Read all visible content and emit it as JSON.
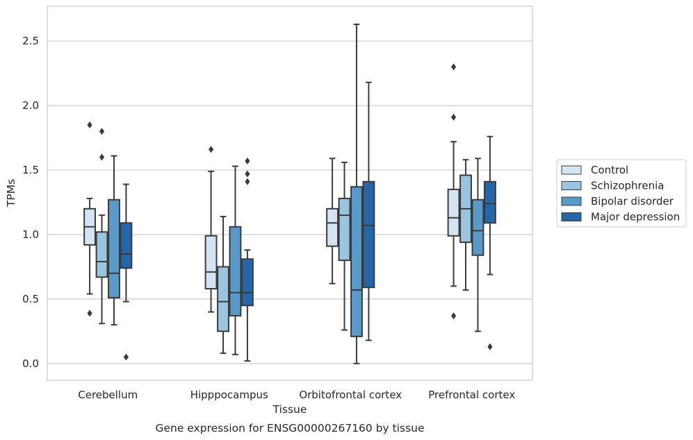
{
  "chart_data": {
    "type": "boxplot",
    "title": "",
    "caption": "Gene expression for ENSG00000267160 by tissue",
    "xlabel": "Tissue",
    "ylabel": "TPMs",
    "ylim": [
      -0.13,
      2.77
    ],
    "yticks": [
      0.0,
      0.5,
      1.0,
      1.5,
      2.0,
      2.5
    ],
    "ytick_labels": [
      "0.0",
      "0.5",
      "1.0",
      "1.5",
      "2.0",
      "2.5"
    ],
    "grid": "horizontal",
    "legend_position": "right",
    "categories": [
      "Cerebellum",
      "Hipppocampus",
      "Orbitofrontal cortex",
      "Prefrontal cortex"
    ],
    "series": [
      {
        "name": "Control",
        "color": "#d3e4f3",
        "boxes": [
          {
            "whislo": 0.54,
            "q1": 0.92,
            "med": 1.06,
            "q3": 1.2,
            "whishi": 1.28,
            "fliers": [
              1.85,
              0.39
            ]
          },
          {
            "whislo": 0.4,
            "q1": 0.58,
            "med": 0.71,
            "q3": 0.99,
            "whishi": 1.49,
            "fliers": [
              1.66
            ]
          },
          {
            "whislo": 0.62,
            "q1": 0.91,
            "med": 1.09,
            "q3": 1.2,
            "whishi": 1.59,
            "fliers": []
          },
          {
            "whislo": 0.6,
            "q1": 0.99,
            "med": 1.13,
            "q3": 1.35,
            "whishi": 1.72,
            "fliers": [
              2.3,
              1.91,
              0.37
            ]
          }
        ]
      },
      {
        "name": "Schizophrenia",
        "color": "#9ac5e0",
        "boxes": [
          {
            "whislo": 0.31,
            "q1": 0.67,
            "med": 0.79,
            "q3": 1.02,
            "whishi": 1.15,
            "fliers": [
              1.8,
              1.6
            ]
          },
          {
            "whislo": 0.08,
            "q1": 0.25,
            "med": 0.48,
            "q3": 0.75,
            "whishi": 1.14,
            "fliers": []
          },
          {
            "whislo": 0.26,
            "q1": 0.8,
            "med": 1.15,
            "q3": 1.28,
            "whishi": 1.56,
            "fliers": []
          },
          {
            "whislo": 0.57,
            "q1": 0.94,
            "med": 1.2,
            "q3": 1.46,
            "whishi": 1.58,
            "fliers": []
          }
        ]
      },
      {
        "name": "Bipolar disorder",
        "color": "#5a9ac8",
        "boxes": [
          {
            "whislo": 0.3,
            "q1": 0.51,
            "med": 0.7,
            "q3": 1.27,
            "whishi": 1.61,
            "fliers": []
          },
          {
            "whislo": 0.07,
            "q1": 0.37,
            "med": 0.55,
            "q3": 1.06,
            "whishi": 1.53,
            "fliers": []
          },
          {
            "whislo": 0.0,
            "q1": 0.21,
            "med": 0.57,
            "q3": 1.37,
            "whishi": 2.63,
            "fliers": []
          },
          {
            "whislo": 0.25,
            "q1": 0.84,
            "med": 1.03,
            "q3": 1.27,
            "whishi": 1.59,
            "fliers": []
          }
        ]
      },
      {
        "name": "Major depression",
        "color": "#2466a8",
        "boxes": [
          {
            "whislo": 0.48,
            "q1": 0.74,
            "med": 0.85,
            "q3": 1.09,
            "whishi": 1.39,
            "fliers": [
              0.05
            ]
          },
          {
            "whislo": 0.02,
            "q1": 0.45,
            "med": 0.55,
            "q3": 0.81,
            "whishi": 0.88,
            "fliers": [
              1.57,
              1.47,
              1.41
            ]
          },
          {
            "whislo": 0.18,
            "q1": 0.59,
            "med": 1.07,
            "q3": 1.41,
            "whishi": 2.18,
            "fliers": []
          },
          {
            "whislo": 0.69,
            "q1": 1.09,
            "med": 1.24,
            "q3": 1.41,
            "whishi": 1.76,
            "fliers": [
              0.13
            ]
          }
        ]
      }
    ]
  }
}
